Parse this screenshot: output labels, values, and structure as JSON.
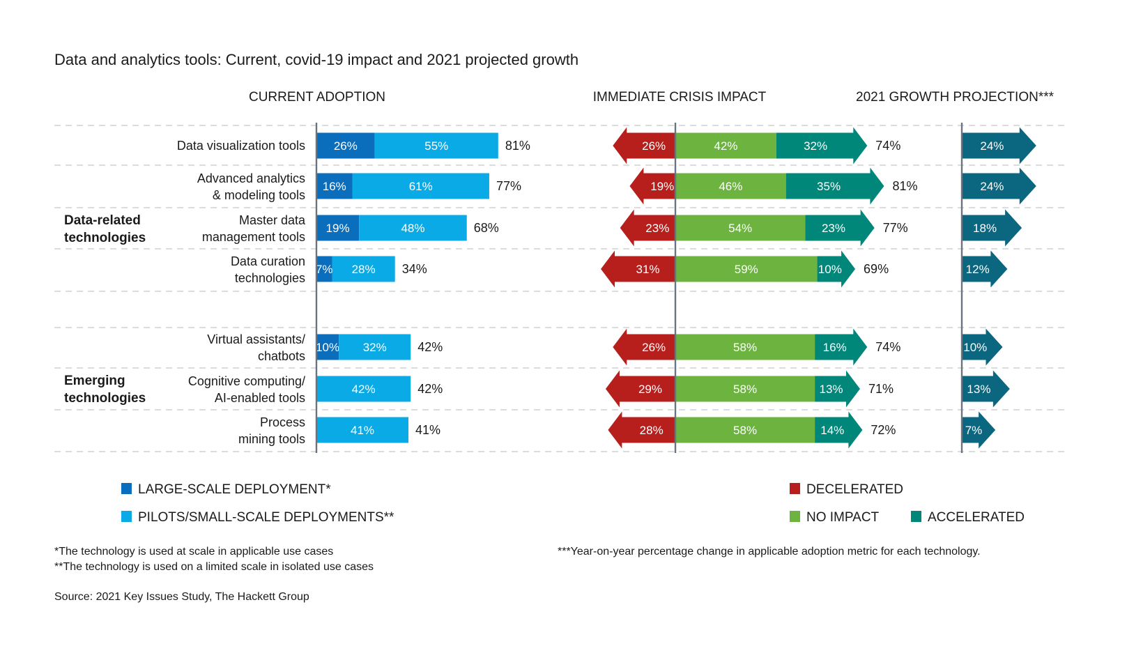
{
  "chart_data": {
    "type": "bar",
    "title": "Data and analytics tools: Current, covid-19 impact and 2021 projected growth",
    "sections": {
      "current_adoption": "CURRENT ADOPTION",
      "crisis_impact": "IMMEDIATE CRISIS IMPACT",
      "growth_projection": "2021 GROWTH PROJECTION***"
    },
    "groups": [
      {
        "name": "Data-related technologies",
        "name_lines": [
          "Data-related",
          "technologies"
        ],
        "rows": [
          {
            "label_lines": [
              "Data visualization tools"
            ],
            "large": 26,
            "pilots": 55,
            "adoption_total": 81,
            "decelerated": 26,
            "no_impact": 42,
            "accelerated": 32,
            "impact_total": 74,
            "growth": 24
          },
          {
            "label_lines": [
              "Advanced analytics",
              "& modeling tools"
            ],
            "large": 16,
            "pilots": 61,
            "adoption_total": 77,
            "decelerated": 19,
            "no_impact": 46,
            "accelerated": 35,
            "impact_total": 81,
            "growth": 24
          },
          {
            "label_lines": [
              "Master data",
              "management tools"
            ],
            "large": 19,
            "pilots": 48,
            "adoption_total": 68,
            "decelerated": 23,
            "no_impact": 54,
            "accelerated": 23,
            "impact_total": 77,
            "growth": 18
          },
          {
            "label_lines": [
              "Data curation",
              "technologies"
            ],
            "large": 7,
            "pilots": 28,
            "adoption_total": 34,
            "decelerated": 31,
            "no_impact": 59,
            "accelerated": 10,
            "impact_total": 69,
            "growth": 12
          }
        ]
      },
      {
        "name": "Emerging technologies",
        "name_lines": [
          "Emerging",
          "technologies"
        ],
        "rows": [
          {
            "label_lines": [
              "Virtual assistants/",
              "chatbots"
            ],
            "large": 10,
            "pilots": 32,
            "adoption_total": 42,
            "decelerated": 26,
            "no_impact": 58,
            "accelerated": 16,
            "impact_total": 74,
            "growth": 10
          },
          {
            "label_lines": [
              "Cognitive computing/",
              "AI-enabled tools"
            ],
            "large": null,
            "pilots": 42,
            "adoption_total": 42,
            "decelerated": 29,
            "no_impact": 58,
            "accelerated": 13,
            "impact_total": 71,
            "growth": 13
          },
          {
            "label_lines": [
              "Process",
              "mining tools"
            ],
            "large": null,
            "pilots": 41,
            "adoption_total": 41,
            "decelerated": 28,
            "no_impact": 58,
            "accelerated": 14,
            "impact_total": 72,
            "growth": 7
          }
        ]
      }
    ],
    "units": "%",
    "legend": {
      "adoption": [
        {
          "key": "large",
          "label": "LARGE-SCALE DEPLOYMENT*",
          "color": "#0a6ebd"
        },
        {
          "key": "pilots",
          "label": "PILOTS/SMALL-SCALE DEPLOYMENTS**",
          "color": "#0aaae6"
        }
      ],
      "impact": [
        {
          "key": "decelerated",
          "label": "DECELERATED",
          "color": "#b71f1c"
        },
        {
          "key": "no_impact",
          "label": "NO IMPACT",
          "color": "#6cb33f"
        },
        {
          "key": "accelerated",
          "label": "ACCELERATED",
          "color": "#00877a"
        }
      ],
      "growth_color": "#0b6680"
    },
    "grid": "dashed row separators"
  },
  "footnotes": {
    "note1": "*The technology is used at scale in applicable use cases",
    "note2": "**The technology is used on a limited scale in isolated use cases",
    "note3": "***Year-on-year percentage change in applicable adoption metric for each technology.",
    "source": "Source: 2021 Key Issues Study, The Hackett Group"
  }
}
